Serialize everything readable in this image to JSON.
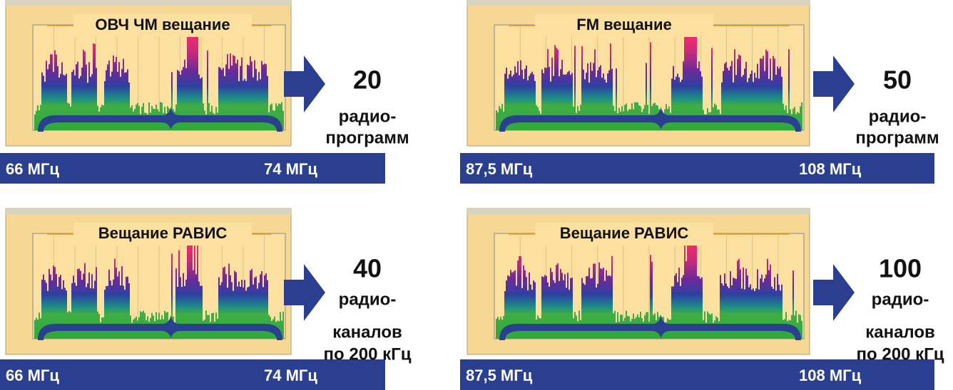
{
  "panels": [
    {
      "title": "ОВЧ ЧМ вещание",
      "freq_start": "66 МГц",
      "freq_end": "74 МГц",
      "lines": [
        "20",
        "радио-",
        "программ"
      ]
    },
    {
      "title": "FM вещание",
      "freq_start": "87,5 МГц",
      "freq_end": "108 МГц",
      "lines": [
        "50",
        "радио-",
        "программ"
      ]
    },
    {
      "title": "Вещание РАВИС",
      "freq_start": "66 МГц",
      "freq_end": "74 МГц",
      "lines": [
        "40",
        "радио-",
        "каналов",
        "по 200 кГц"
      ]
    },
    {
      "title": "Вещание РАВИС",
      "freq_start": "87,5 МГц",
      "freq_end": "108 МГц",
      "lines": [
        "100",
        "радио-",
        "каналов",
        "по 200 кГц"
      ]
    }
  ]
}
